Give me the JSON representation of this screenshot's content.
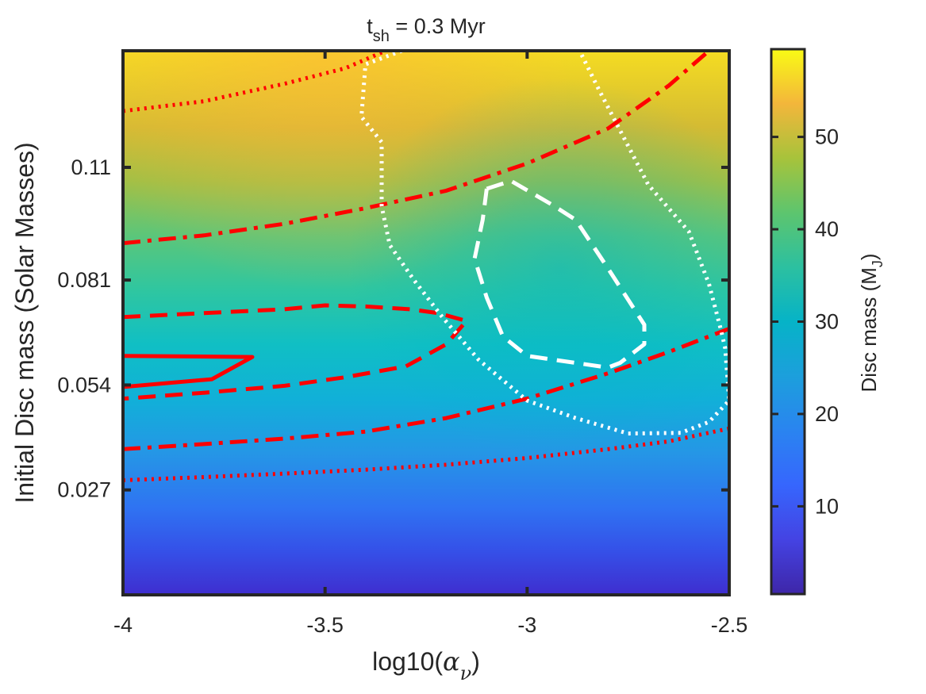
{
  "chart_data": {
    "type": "heatmap",
    "title": {
      "main": "t",
      "sub": "sh",
      "rest": " = 0.3 Myr"
    },
    "xlabel": {
      "prefix": "log10(",
      "symbol": "α",
      "sub": "ν",
      "suffix": ")"
    },
    "ylabel": "Initial Disc mass (Solar Masses)",
    "colorbar_label": {
      "main": "Disc mass (M",
      "sub": "J",
      "suffix": ")"
    },
    "xlim": [
      -4,
      -2.5
    ],
    "ylim": [
      0,
      0.14
    ],
    "clim": [
      0.5,
      59.5
    ],
    "colormap": "parula",
    "x_ticks": [
      {
        "value": -4,
        "label": "-4"
      },
      {
        "value": -3.5,
        "label": "-3.5"
      },
      {
        "value": -3,
        "label": "-3"
      },
      {
        "value": -2.5,
        "label": "-2.5"
      }
    ],
    "y_ticks": [
      {
        "value": 0.027,
        "label": "0.027"
      },
      {
        "value": 0.054,
        "label": "0.054"
      },
      {
        "value": 0.081,
        "label": "0.081"
      },
      {
        "value": 0.11,
        "label": "0.11"
      }
    ],
    "colorbar_ticks": [
      {
        "value": 10,
        "label": "10"
      },
      {
        "value": 20,
        "label": "20"
      },
      {
        "value": 30,
        "label": "30"
      },
      {
        "value": 40,
        "label": "40"
      },
      {
        "value": 50,
        "label": "50"
      }
    ],
    "contours": [
      {
        "name": "red-solid-contour",
        "color": "#ff0000",
        "style": "solid",
        "points": [
          [
            -4.0,
            0.0615
          ],
          [
            -3.68,
            0.0612
          ],
          [
            -3.78,
            0.0555
          ],
          [
            -4.0,
            0.0535
          ]
        ]
      },
      {
        "name": "red-dashed-contour",
        "color": "#ff0000",
        "style": "dashed",
        "points": [
          [
            -4.0,
            0.0715
          ],
          [
            -3.8,
            0.0725
          ],
          [
            -3.6,
            0.0735
          ],
          [
            -3.5,
            0.0745
          ],
          [
            -3.4,
            0.0742
          ],
          [
            -3.29,
            0.0735
          ],
          [
            -3.22,
            0.0725
          ],
          [
            -3.15,
            0.0705
          ],
          [
            -3.2,
            0.0645
          ],
          [
            -3.3,
            0.0588
          ],
          [
            -3.45,
            0.056
          ],
          [
            -3.6,
            0.0538
          ],
          [
            -3.8,
            0.052
          ],
          [
            -4.0,
            0.0505
          ]
        ]
      },
      {
        "name": "red-dashdot-contour-upper",
        "color": "#ff0000",
        "style": "dashdot",
        "points": [
          [
            -4.0,
            0.0905
          ],
          [
            -3.8,
            0.0925
          ],
          [
            -3.6,
            0.0955
          ],
          [
            -3.4,
            0.0995
          ],
          [
            -3.2,
            0.104
          ],
          [
            -3.0,
            0.111
          ],
          [
            -2.8,
            0.12
          ],
          [
            -2.65,
            0.131
          ],
          [
            -2.55,
            0.14
          ]
        ]
      },
      {
        "name": "red-dashdot-contour-lower",
        "color": "#ff0000",
        "style": "dashdot",
        "points": [
          [
            -4.0,
            0.0375
          ],
          [
            -3.8,
            0.0388
          ],
          [
            -3.6,
            0.0402
          ],
          [
            -3.4,
            0.042
          ],
          [
            -3.2,
            0.0455
          ],
          [
            -3.0,
            0.0505
          ],
          [
            -2.8,
            0.057
          ],
          [
            -2.65,
            0.0625
          ],
          [
            -2.5,
            0.0685
          ]
        ]
      },
      {
        "name": "red-dotted-contour-upper",
        "color": "#ff0000",
        "style": "dotted",
        "points": [
          [
            -4.0,
            0.1245
          ],
          [
            -3.8,
            0.127
          ],
          [
            -3.6,
            0.1315
          ],
          [
            -3.45,
            0.1355
          ],
          [
            -3.35,
            0.14
          ]
        ]
      },
      {
        "name": "red-dotted-contour-lower",
        "color": "#ff0000",
        "style": "dotted",
        "points": [
          [
            -4.0,
            0.0295
          ],
          [
            -3.8,
            0.0303
          ],
          [
            -3.6,
            0.0312
          ],
          [
            -3.4,
            0.0322
          ],
          [
            -3.2,
            0.0335
          ],
          [
            -3.0,
            0.0352
          ],
          [
            -2.8,
            0.0375
          ],
          [
            -2.65,
            0.0395
          ],
          [
            -2.5,
            0.0428
          ]
        ]
      },
      {
        "name": "white-dashed-contour",
        "color": "#ffffff",
        "style": "dashed",
        "points": [
          [
            -3.1,
            0.1045
          ],
          [
            -3.04,
            0.1065
          ],
          [
            -2.94,
            0.1005
          ],
          [
            -2.88,
            0.0965
          ],
          [
            -2.8,
            0.084
          ],
          [
            -2.71,
            0.0695
          ],
          [
            -2.71,
            0.0645
          ],
          [
            -2.77,
            0.0597
          ],
          [
            -2.8,
            0.0585
          ],
          [
            -3.0,
            0.0615
          ],
          [
            -3.06,
            0.0665
          ],
          [
            -3.1,
            0.0765
          ],
          [
            -3.13,
            0.0865
          ],
          [
            -3.11,
            0.0965
          ],
          [
            -3.1,
            0.1045
          ]
        ]
      },
      {
        "name": "white-dotted-contour",
        "color": "#ffffff",
        "style": "dotted",
        "points": [
          [
            -3.31,
            0.14
          ],
          [
            -3.4,
            0.1365
          ],
          [
            -3.41,
            0.123
          ],
          [
            -3.36,
            0.1165
          ],
          [
            -3.36,
            0.1
          ],
          [
            -3.34,
            0.09
          ],
          [
            -3.28,
            0.081
          ],
          [
            -3.21,
            0.0715
          ],
          [
            -3.12,
            0.0605
          ],
          [
            -3.0,
            0.05
          ],
          [
            -2.88,
            0.0455
          ],
          [
            -2.75,
            0.0415
          ],
          [
            -2.62,
            0.0417
          ],
          [
            -2.55,
            0.0445
          ],
          [
            -2.5,
            0.05
          ],
          [
            -2.51,
            0.0635
          ],
          [
            -2.52,
            0.068
          ],
          [
            -2.55,
            0.08
          ],
          [
            -2.6,
            0.0935
          ],
          [
            -2.7,
            0.1055
          ],
          [
            -2.76,
            0.1175
          ],
          [
            -2.82,
            0.1295
          ],
          [
            -2.87,
            0.14
          ]
        ]
      }
    ]
  }
}
